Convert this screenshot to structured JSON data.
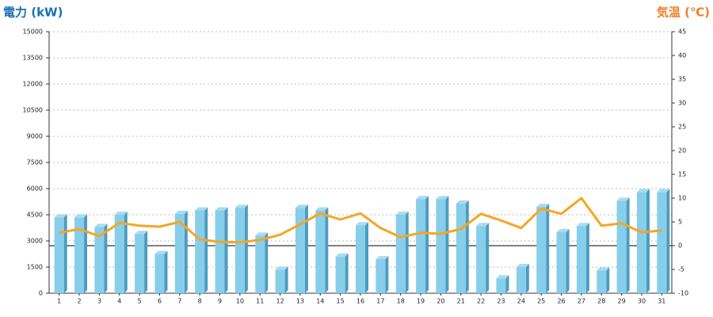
{
  "chart_data": {
    "type": "bar_line",
    "title_left": "電力 (kW)",
    "title_right": "気温 (℃)",
    "categories": [
      "1",
      "2",
      "3",
      "4",
      "5",
      "6",
      "7",
      "8",
      "9",
      "10",
      "11",
      "12",
      "13",
      "14",
      "15",
      "16",
      "17",
      "18",
      "19",
      "20",
      "21",
      "22",
      "23",
      "24",
      "25",
      "26",
      "27",
      "28",
      "29",
      "30",
      "31"
    ],
    "series": [
      {
        "name": "電力",
        "type": "bar",
        "color": "#87ceeb",
        "values": [
          4350,
          4350,
          3800,
          4500,
          3400,
          2250,
          4550,
          4750,
          4750,
          4900,
          3300,
          1350,
          4900,
          4750,
          2100,
          3900,
          1950,
          4500,
          5400,
          5400,
          5150,
          3850,
          850,
          1500,
          4950,
          3500,
          3850,
          1300,
          5300,
          5800,
          5800
        ]
      },
      {
        "name": "気温",
        "type": "line",
        "axis": "y2",
        "color": "#f5a623",
        "values": [
          2.7,
          3.5,
          2,
          4.8,
          4.2,
          4,
          5,
          1.3,
          0.8,
          0.7,
          1.2,
          2.3,
          4.5,
          6.8,
          5.5,
          6.8,
          3.7,
          1.8,
          2.7,
          2.5,
          3.5,
          6.7,
          5.3,
          3.7,
          7.8,
          6.7,
          10,
          4.2,
          4.7,
          2.8,
          3.2
        ]
      }
    ],
    "ylim": [
      0,
      15000
    ],
    "yticks": [
      0,
      1500,
      3000,
      4500,
      6000,
      7500,
      9000,
      10500,
      12000,
      13500,
      15000
    ],
    "y2lim": [
      -10,
      45
    ],
    "y2ticks": [
      -10,
      -5,
      0,
      5,
      10,
      15,
      20,
      25,
      30,
      35,
      40,
      45
    ],
    "grid": true
  }
}
